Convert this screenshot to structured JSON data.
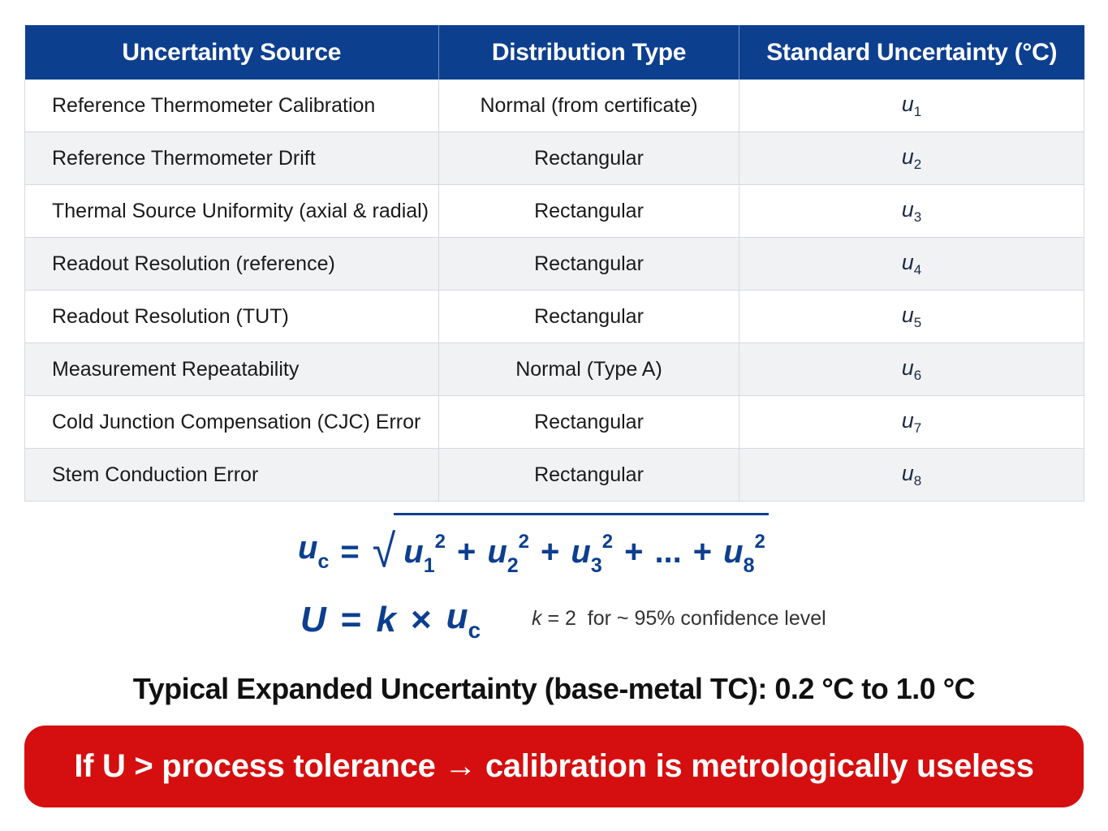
{
  "table": {
    "headers": [
      "Uncertainty Source",
      "Distribution Type",
      "Standard Uncertainty (°C)"
    ],
    "rows": [
      {
        "source": "Reference Thermometer Calibration",
        "distribution": "Normal (from certificate)",
        "symbol": "u",
        "index": "1"
      },
      {
        "source": "Reference Thermometer Drift",
        "distribution": "Rectangular",
        "symbol": "u",
        "index": "2"
      },
      {
        "source": "Thermal Source Uniformity (axial & radial)",
        "distribution": "Rectangular",
        "symbol": "u",
        "index": "3"
      },
      {
        "source": "Readout Resolution (reference)",
        "distribution": "Rectangular",
        "symbol": "u",
        "index": "4"
      },
      {
        "source": "Readout Resolution (TUT)",
        "distribution": "Rectangular",
        "symbol": "u",
        "index": "5"
      },
      {
        "source": "Measurement Repeatability",
        "distribution": "Normal (Type A)",
        "symbol": "u",
        "index": "6"
      },
      {
        "source": "Cold Junction Compensation (CJC) Error",
        "distribution": "Rectangular",
        "symbol": "u",
        "index": "7"
      },
      {
        "source": "Stem Conduction Error",
        "distribution": "Rectangular",
        "symbol": "u",
        "index": "8"
      }
    ]
  },
  "formula_combined": {
    "lhs": "u",
    "lhs_sub": "c",
    "equals": "=",
    "terms": [
      {
        "base": "u",
        "sub": "1",
        "sup": "2"
      },
      {
        "op": "+"
      },
      {
        "base": "u",
        "sub": "2",
        "sup": "2"
      },
      {
        "op": "+"
      },
      {
        "base": "u",
        "sub": "3",
        "sup": "2"
      },
      {
        "op": "+"
      },
      {
        "text": "..."
      },
      {
        "op": "+"
      },
      {
        "base": "u",
        "sub": "8",
        "sup": "2"
      }
    ]
  },
  "formula_expanded": {
    "lhs": "U",
    "equals": "=",
    "k": "k",
    "times": "×",
    "u": "u",
    "u_sub": "c"
  },
  "confidence_note": {
    "k": "k",
    "rest": " = 2  for ~ 95% confidence level"
  },
  "typical_text": "Typical Expanded Uncertainty (base-metal TC): 0.2 °C to 1.0 °C",
  "warning_text": "If U > process tolerance → calibration is metrologically useless",
  "colors": {
    "header_bg": "#0d3f8f",
    "formula": "#0d3f8f",
    "banner_bg": "#d50f0f"
  }
}
